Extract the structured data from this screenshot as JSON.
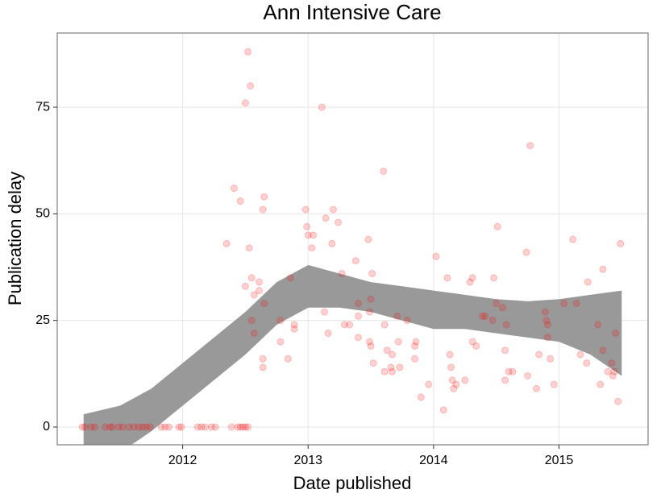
{
  "chart_data": {
    "type": "scatter",
    "title": "Ann Intensive Care",
    "x_label": "Date published",
    "y_label": "Publication delay",
    "x": [
      2011.2,
      2011.22,
      2011.27,
      2011.3,
      2011.38,
      2011.42,
      2011.44,
      2011.49,
      2011.52,
      2011.57,
      2011.61,
      2011.65,
      2011.68,
      2011.71,
      2011.74,
      2011.83,
      2011.86,
      2011.89,
      2011.97,
      2011.99,
      2012.12,
      2012.15,
      2012.18,
      2012.23,
      2012.26,
      2012.39,
      2012.44,
      2012.46,
      2012.48,
      2012.5,
      2012.52,
      2012.52,
      2012.54,
      2012.5,
      2013.11,
      2012.41,
      2012.46,
      2012.65,
      2012.64,
      2012.53,
      2012.35,
      2012.55,
      2012.5,
      2012.61,
      2012.57,
      2012.61,
      2012.65,
      2012.55,
      2012.57,
      2012.64,
      2012.64,
      2012.78,
      2012.78,
      2012.84,
      2012.86,
      2012.89,
      2012.89,
      2012.98,
      2012.99,
      2013.0,
      2013.04,
      2013.03,
      2013.14,
      2013.2,
      2013.24,
      2013.19,
      2013.27,
      2013.13,
      2013.16,
      2013.29,
      2013.33,
      2013.38,
      2013.4,
      2013.4,
      2013.4,
      2013.48,
      2013.51,
      2013.5,
      2013.49,
      2013.49,
      2013.5,
      2013.52,
      2013.6,
      2013.61,
      2013.63,
      2013.66,
      2013.61,
      2013.67,
      2013.67,
      2013.71,
      2013.72,
      2013.73,
      2013.79,
      2013.85,
      2013.86,
      2013.85,
      2013.9,
      2013.96,
      2014.02,
      2014.08,
      2014.11,
      2014.13,
      2014.14,
      2014.15,
      2014.16,
      2014.18,
      2014.25,
      2014.29,
      2014.31,
      2014.31,
      2014.34,
      2014.39,
      2014.41,
      2014.47,
      2014.48,
      2014.5,
      2014.51,
      2014.55,
      2014.57,
      2014.57,
      2014.58,
      2014.6,
      2014.63,
      2014.74,
      2014.75,
      2014.77,
      2014.82,
      2014.84,
      2014.89,
      2014.9,
      2014.91,
      2014.91,
      2014.93,
      2014.96,
      2015.04,
      2015.11,
      2015.14,
      2015.17,
      2015.22,
      2015.23,
      2015.31,
      2015.33,
      2015.35,
      2015.35,
      2015.39,
      2015.42,
      2015.43,
      2015.44,
      2015.45,
      2015.47,
      2015.49
    ],
    "values": [
      0,
      0,
      0,
      0,
      0,
      0,
      0,
      0,
      0,
      0,
      0,
      0,
      0,
      0,
      0,
      0,
      0,
      0,
      0,
      0,
      0,
      0,
      0,
      0,
      0,
      0,
      0,
      0,
      0,
      0,
      0,
      88,
      80,
      76,
      75,
      56,
      53,
      54,
      51,
      42,
      43,
      35,
      33,
      34,
      31,
      32,
      29,
      25,
      22,
      16,
      14,
      25,
      20,
      16,
      35,
      23,
      24,
      51,
      47,
      45,
      45,
      42,
      49,
      51,
      48,
      43,
      36,
      27,
      22,
      24,
      24,
      39,
      29,
      26,
      21,
      44,
      36,
      30,
      27,
      20,
      19,
      15,
      60,
      24,
      18,
      14,
      13,
      17,
      13,
      26,
      20,
      14,
      25,
      19,
      20,
      16,
      7,
      10,
      40,
      4,
      35,
      17,
      14,
      11,
      9,
      10,
      11,
      34,
      35,
      20,
      19,
      26,
      26,
      25,
      35,
      29,
      47,
      28,
      11,
      18,
      24,
      13,
      13,
      41,
      12,
      66,
      9,
      17,
      27,
      25,
      21,
      24,
      16,
      10,
      29,
      44,
      29,
      17,
      15,
      34,
      24,
      10,
      18,
      37,
      13,
      15,
      12,
      13,
      22,
      6,
      43
    ],
    "color": "#ff0000",
    "opacity": 0.18,
    "band": {
      "x": [
        2011.21,
        2011.5,
        2011.75,
        2012.0,
        2012.25,
        2012.5,
        2012.75,
        2013.0,
        2013.25,
        2013.5,
        2013.75,
        2014.0,
        2014.25,
        2014.5,
        2014.75,
        2015.0,
        2015.25,
        2015.5
      ],
      "upper": [
        3,
        5,
        9,
        15,
        21,
        27,
        34,
        38,
        36,
        34,
        33,
        32,
        31,
        30,
        29.5,
        30,
        31,
        32
      ],
      "lower": [
        -8,
        -6,
        -1,
        5,
        11,
        17,
        24,
        28,
        28,
        27,
        25,
        23,
        23,
        22,
        21,
        20,
        17,
        12
      ],
      "color": "#999999"
    },
    "xlim": [
      2011.0,
      2015.71
    ],
    "ylim": [
      -4.16,
      92.4
    ],
    "xticks": [
      2012,
      2013,
      2014,
      2015
    ],
    "yticks": [
      0,
      25,
      50,
      75
    ],
    "grid": true
  }
}
